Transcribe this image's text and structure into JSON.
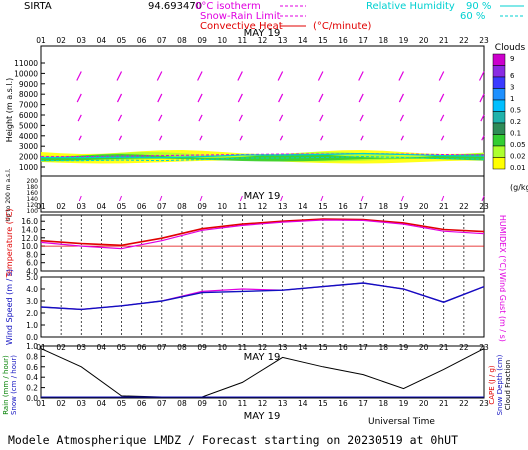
{
  "header": {
    "site": "SIRTA",
    "coords": "94.693470",
    "legend_iso": "0°C isotherm",
    "legend_snow": "Snow-Rain Limit",
    "legend_conv": "Convective Heat",
    "legend_conv_unit": "(°C/minute)",
    "legend_rh": "Relative Humidity",
    "rh_90": "90 %",
    "rh_60": "60 %"
  },
  "colors": {
    "magenta": "#e000e0",
    "red": "#e00000",
    "blue": "#1010c0",
    "cyan": "#00d0d0",
    "black": "#000000"
  },
  "axes": {
    "hours": [
      "01",
      "02",
      "03",
      "04",
      "05",
      "06",
      "07",
      "08",
      "09",
      "10",
      "11",
      "12",
      "13",
      "14",
      "15",
      "16",
      "17",
      "18",
      "19",
      "20",
      "21",
      "22",
      "23"
    ],
    "date": "MAY 19",
    "x_title": "Universal Time"
  },
  "footer": {
    "caption": "Modele Atmospherique LMDZ / Forecast starting on 20230519 at 0hUT"
  },
  "cloud_scale": {
    "title": "Clouds",
    "unit": "(g/kg)",
    "labels": [
      "9",
      "6",
      "3",
      "1",
      "0.5",
      "0.2",
      "0.1",
      "0.05",
      "0.02",
      "0.01"
    ],
    "colors": [
      "#cc00cc",
      "#8a2be2",
      "#3a3aff",
      "#1e90ff",
      "#00bfff",
      "#20b2aa",
      "#2e8b57",
      "#32cd32",
      "#adff2f",
      "#ffff00"
    ]
  },
  "chart_data": [
    {
      "type": "line",
      "title": "",
      "ylabel": "Height (m a.s.l.)",
      "ylabel_lower": "Up to 200 m a.s.l.",
      "yticks_upper": [
        "11000",
        "10000",
        "9000",
        "8000",
        "7000",
        "6000",
        "5000",
        "4000",
        "3000",
        "2000",
        "1000"
      ],
      "yticks_lower": [
        "200",
        "180",
        "160",
        "140",
        "120",
        "100"
      ],
      "series": [
        {
          "name": "0°C isotherm",
          "x": [
            1,
            3,
            5,
            7,
            9,
            11,
            13,
            15,
            17,
            19,
            21,
            23
          ],
          "values": [
            2000,
            2000,
            2050,
            2100,
            2150,
            2200,
            2250,
            2250,
            2300,
            2250,
            2200,
            2150
          ]
        },
        {
          "name": "Relative Humidity",
          "x": [
            1,
            3,
            5,
            7,
            9,
            11,
            13,
            15,
            17,
            19,
            21,
            23
          ],
          "values": [
            1900,
            1900,
            1950,
            1900,
            2000,
            2150,
            2150,
            2200,
            2300,
            2200,
            2100,
            2050
          ]
        }
      ]
    },
    {
      "type": "line",
      "ylabel": "Temperature (°C)",
      "ylabel_right": "HUMIDEX (°C)",
      "yticks": [
        "16.0",
        "14.0",
        "12.0",
        "10.0",
        "8.0",
        "6.0",
        "4.0"
      ],
      "ylim": [
        4,
        17.5
      ],
      "x": [
        1,
        3,
        5,
        7,
        9,
        11,
        13,
        15,
        17,
        19,
        21,
        23
      ],
      "series": [
        {
          "name": "Temperature",
          "values": [
            11.3,
            10.6,
            10.2,
            11.9,
            14.2,
            15.3,
            16.0,
            16.5,
            16.4,
            15.6,
            14.0,
            13.5
          ]
        },
        {
          "name": "Humidex",
          "values": [
            10.9,
            10.0,
            9.4,
            11.3,
            13.8,
            15.0,
            15.8,
            16.3,
            16.2,
            15.3,
            13.6,
            13.0
          ]
        }
      ]
    },
    {
      "type": "line",
      "ylabel": "Wind Speed (m / s)",
      "ylabel_right": "Wind Gust (m / s)",
      "yticks": [
        "5.0",
        "4.0",
        "3.0",
        "2.0",
        "1.0",
        "0.0"
      ],
      "ylim": [
        0,
        5
      ],
      "x": [
        1,
        3,
        5,
        7,
        9,
        11,
        13,
        15,
        17,
        19,
        21,
        23
      ],
      "series": [
        {
          "name": "Wind Speed",
          "values": [
            2.5,
            2.3,
            2.6,
            3.0,
            3.7,
            3.8,
            3.9,
            4.2,
            4.5,
            4.0,
            2.9,
            4.2
          ]
        },
        {
          "name": "Wind Gust",
          "values": [
            2.5,
            2.3,
            2.6,
            3.0,
            3.8,
            4.0,
            3.9,
            4.2,
            4.5,
            4.0,
            2.9,
            4.2
          ]
        }
      ]
    },
    {
      "type": "line",
      "ylabel_left": "Rain (mm / hour)",
      "ylabel_left2": "Snow (cm / hour)",
      "ylabel_right": "CAPE (J / g)",
      "ylabel_right2": "Snow Depth (cm)",
      "ylabel_right3": "Cloud Fraction",
      "yticks": [
        "1.0",
        "0.8",
        "0.6",
        "0.4",
        "0.2",
        "0.0"
      ],
      "ylim": [
        0,
        1
      ],
      "x": [
        1,
        3,
        5,
        7,
        9,
        11,
        13,
        15,
        17,
        19,
        21,
        23
      ],
      "series": [
        {
          "name": "Cloud Fraction",
          "values": [
            0.95,
            0.6,
            0.04,
            0.02,
            0.02,
            0.3,
            0.78,
            0.6,
            0.45,
            0.18,
            0.55,
            0.95
          ]
        }
      ]
    }
  ]
}
